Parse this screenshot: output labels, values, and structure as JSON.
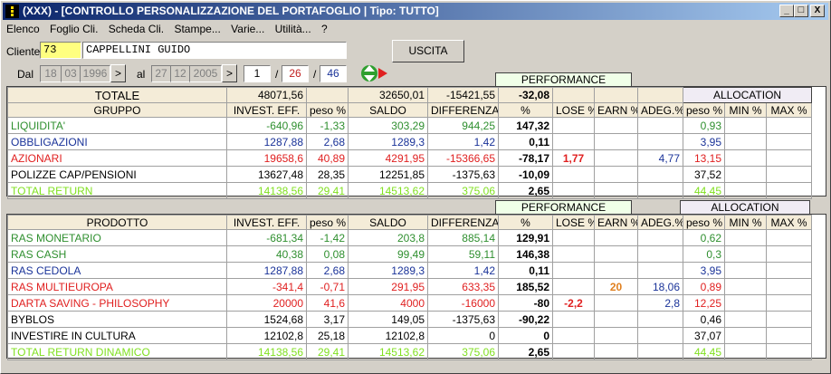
{
  "window": {
    "title": "(XXX) - [CONTROLLO PERSONALIZZAZIONE DEL PORTAFOGLIO   | Tipo: TUTTO]",
    "controls": [
      "_",
      "□",
      "X"
    ]
  },
  "menu": [
    "Elenco",
    "Foglio Cli.",
    "Scheda Cli.",
    "Stampe...",
    "Varie...",
    "Utilità...",
    "?"
  ],
  "cliente": {
    "label": "Cliente",
    "code": "73",
    "name": "CAPPELLINI GUIDO"
  },
  "uscita_label": "USCITA",
  "dal": {
    "label": "Dal",
    "d": "18",
    "m": "03",
    "y": "1996",
    "btn": ">"
  },
  "al": {
    "label": "al",
    "d": "27",
    "m": "12",
    "y": "2005",
    "btn": ">"
  },
  "pager": {
    "current": "1",
    "sep1": "/",
    "middle": "26",
    "sep2": "/",
    "total": "46"
  },
  "perf_header": "PERFORMANCE ASSOLUTA",
  "alloc_header": "ALLOCATION",
  "totale": {
    "label": "TOTALE",
    "invest": "48071,56",
    "saldo": "32650,01",
    "diff": "-15421,55",
    "pct": "-32,08"
  },
  "gruppo_cols": [
    "GRUPPO",
    "INVEST. EFF.",
    "peso %",
    "SALDO",
    "DIFFERENZA",
    "%",
    "LOSE %",
    "EARN %",
    "ADEG.%",
    "peso %",
    "MIN %",
    "MAX %"
  ],
  "gruppo_rows": [
    {
      "name": "LIQUIDITA'",
      "color": "green",
      "invest": "-640,96",
      "peso": "-1,33",
      "saldo": "303,29",
      "diff": "944,25",
      "pct": "147,32",
      "lose": "",
      "earn": "",
      "adeg": "",
      "apeso": "0,93"
    },
    {
      "name": "OBBLIGAZIONI",
      "color": "navy",
      "invest": "1287,88",
      "peso": "2,68",
      "saldo": "1289,3",
      "diff": "1,42",
      "pct": "0,11",
      "lose": "",
      "earn": "",
      "adeg": "",
      "apeso": "3,95"
    },
    {
      "name": "AZIONARI",
      "color": "red",
      "invest": "19658,6",
      "peso": "40,89",
      "saldo": "4291,95",
      "diff": "-15366,65",
      "pct": "-78,17",
      "lose": "1,77",
      "earn": "",
      "adeg": "4,77",
      "apeso": "13,15"
    },
    {
      "name": "POLIZZE CAP/PENSIONI",
      "color": "blk",
      "invest": "13627,48",
      "peso": "28,35",
      "saldo": "12251,85",
      "diff": "-1375,63",
      "pct": "-10,09",
      "lose": "",
      "earn": "",
      "adeg": "",
      "apeso": "37,52"
    },
    {
      "name": "TOTAL RETURN",
      "color": "lime",
      "invest": "14138,56",
      "peso": "29,41",
      "saldo": "14513,62",
      "diff": "375,06",
      "pct": "2,65",
      "lose": "",
      "earn": "",
      "adeg": "",
      "apeso": "44,45"
    }
  ],
  "prodotto_cols": [
    "PRODOTTO",
    "INVEST. EFF.",
    "peso %",
    "SALDO",
    "DIFFERENZA",
    "%",
    "LOSE %",
    "EARN %",
    "ADEG.%",
    "peso %",
    "MIN %",
    "MAX %"
  ],
  "prodotto_rows": [
    {
      "name": "RAS MONETARIO",
      "color": "green",
      "invest": "-681,34",
      "peso": "-1,42",
      "saldo": "203,8",
      "diff": "885,14",
      "pct": "129,91",
      "lose": "",
      "earn": "",
      "adeg": "",
      "apeso": "0,62"
    },
    {
      "name": "RAS CASH",
      "color": "green",
      "invest": "40,38",
      "peso": "0,08",
      "saldo": "99,49",
      "diff": "59,11",
      "pct": "146,38",
      "lose": "",
      "earn": "",
      "adeg": "",
      "apeso": "0,3"
    },
    {
      "name": "RAS CEDOLA",
      "color": "navy",
      "invest": "1287,88",
      "peso": "2,68",
      "saldo": "1289,3",
      "diff": "1,42",
      "pct": "0,11",
      "lose": "",
      "earn": "",
      "adeg": "",
      "apeso": "3,95"
    },
    {
      "name": "RAS MULTIEUROPA",
      "color": "red",
      "invest": "-341,4",
      "peso": "-0,71",
      "saldo": "291,95",
      "diff": "633,35",
      "pct": "185,52",
      "lose": "",
      "earn": "20",
      "adeg": "18,06",
      "apeso": "0,89"
    },
    {
      "name": "DARTA SAVING - PHILOSOPHY",
      "color": "red",
      "invest": "20000",
      "peso": "41,6",
      "saldo": "4000",
      "diff": "-16000",
      "pct": "-80",
      "lose": "-2,2",
      "earn": "",
      "adeg": "2,8",
      "apeso": "12,25"
    },
    {
      "name": "BYBLOS",
      "color": "blk",
      "invest": "1524,68",
      "peso": "3,17",
      "saldo": "149,05",
      "diff": "-1375,63",
      "pct": "-90,22",
      "lose": "",
      "earn": "",
      "adeg": "",
      "apeso": "0,46"
    },
    {
      "name": "INVESTIRE IN CULTURA",
      "color": "blk",
      "invest": "12102,8",
      "peso": "25,18",
      "saldo": "12102,8",
      "diff": "0",
      "pct": "0",
      "lose": "",
      "earn": "",
      "adeg": "",
      "apeso": "37,07"
    },
    {
      "name": "TOTAL RETURN DINAMICO",
      "color": "lime",
      "invest": "14138,56",
      "peso": "29,41",
      "saldo": "14513,62",
      "diff": "375,06",
      "pct": "2,65",
      "lose": "",
      "earn": "",
      "adeg": "",
      "apeso": "44,45"
    }
  ]
}
